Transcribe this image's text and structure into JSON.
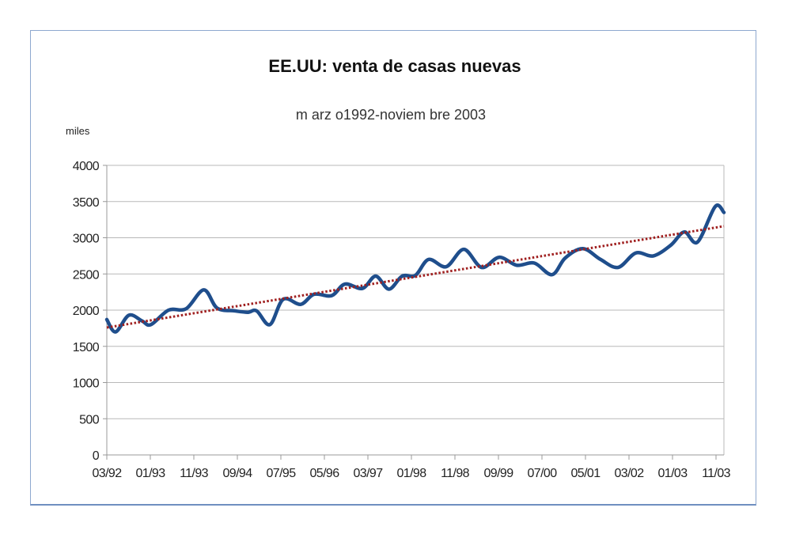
{
  "chart_data": {
    "type": "line",
    "title": "EE.UU: venta de casas nuevas",
    "subtitle": "m arz o1992-noviem bre 2003",
    "ylabel": "miles",
    "ylim": [
      0,
      4000
    ],
    "yticks": [
      0,
      500,
      1000,
      1500,
      2000,
      2500,
      3000,
      3500,
      4000
    ],
    "xticks": [
      "03/92",
      "01/93",
      "11/93",
      "09/94",
      "07/95",
      "05/96",
      "03/97",
      "01/98",
      "11/98",
      "09/99",
      "07/00",
      "05/01",
      "03/02",
      "01/03",
      "11/03"
    ],
    "grid": true,
    "x_start": "1992-03",
    "x_end": "2003-11",
    "series": [
      {
        "color": "#1f4e8c",
        "style": "solid",
        "x": [
          "1992-03",
          "1992-05",
          "1992-08",
          "1992-11",
          "1993-01",
          "1993-05",
          "1993-09",
          "1994-01",
          "1994-04",
          "1994-08",
          "1994-11",
          "1995-01",
          "1995-04",
          "1995-07",
          "1995-11",
          "1996-02",
          "1996-06",
          "1996-09",
          "1997-01",
          "1997-04",
          "1997-07",
          "1997-10",
          "1998-01",
          "1998-04",
          "1998-08",
          "1998-12",
          "1999-04",
          "1999-08",
          "1999-12",
          "2000-04",
          "2000-08",
          "2000-11",
          "2001-03",
          "2001-07",
          "2001-11",
          "2002-03",
          "2002-07",
          "2002-11",
          "2003-02",
          "2003-05",
          "2003-09",
          "2003-11"
        ],
        "y": [
          1870,
          1700,
          1930,
          1850,
          1800,
          2000,
          2020,
          2280,
          2030,
          1990,
          1970,
          1990,
          1800,
          2150,
          2080,
          2220,
          2200,
          2360,
          2300,
          2470,
          2290,
          2470,
          2480,
          2700,
          2600,
          2840,
          2590,
          2730,
          2620,
          2650,
          2490,
          2720,
          2850,
          2700,
          2590,
          2790,
          2750,
          2900,
          3080,
          2940,
          3430,
          3350
        ]
      },
      {
        "color": "#a02020",
        "style": "dotted",
        "x": [
          "1992-03",
          "2003-11"
        ],
        "y": [
          1760,
          3160
        ]
      }
    ]
  }
}
